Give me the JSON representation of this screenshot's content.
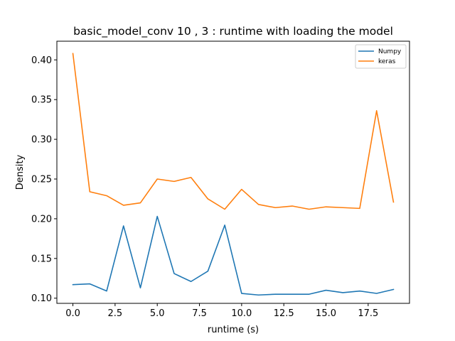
{
  "chart_data": {
    "type": "line",
    "title": "basic_model_conv 10 , 3 : runtime  with loading the model",
    "xlabel": "runtime (s)",
    "ylabel": "Density",
    "xlim": [
      -0.95,
      19.95
    ],
    "ylim": [
      0.0935,
      0.4235
    ],
    "xticks": [
      0.0,
      2.5,
      5.0,
      7.5,
      10.0,
      12.5,
      15.0,
      17.5
    ],
    "xtick_labels": [
      "0.0",
      "2.5",
      "5.0",
      "7.5",
      "10.0",
      "12.5",
      "15.0",
      "17.5"
    ],
    "yticks": [
      0.1,
      0.15,
      0.2,
      0.25,
      0.3,
      0.35,
      0.4
    ],
    "ytick_labels": [
      "0.10",
      "0.15",
      "0.20",
      "0.25",
      "0.30",
      "0.35",
      "0.40"
    ],
    "grid": false,
    "legend_position": "top-right",
    "x": [
      0,
      1,
      2,
      3,
      4,
      5,
      6,
      7,
      8,
      9,
      10,
      11,
      12,
      13,
      14,
      15,
      16,
      17,
      18,
      19
    ],
    "series": [
      {
        "name": "Numpy",
        "color": "#1f77b4",
        "values": [
          0.117,
          0.118,
          0.109,
          0.191,
          0.113,
          0.203,
          0.131,
          0.121,
          0.134,
          0.192,
          0.106,
          0.104,
          0.105,
          0.105,
          0.105,
          0.11,
          0.107,
          0.109,
          0.106,
          0.111
        ]
      },
      {
        "name": "keras",
        "color": "#ff7f0e",
        "values": [
          0.408,
          0.234,
          0.229,
          0.217,
          0.22,
          0.25,
          0.247,
          0.252,
          0.225,
          0.212,
          0.237,
          0.218,
          0.214,
          0.216,
          0.212,
          0.215,
          0.214,
          0.213,
          0.336,
          0.221
        ]
      }
    ]
  }
}
